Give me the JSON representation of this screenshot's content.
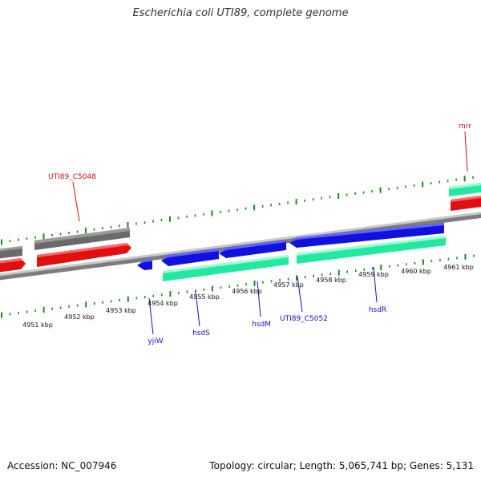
{
  "title": "Escherichia coli UTI89, complete genome",
  "footer": {
    "accession": "Accession: NC_007946",
    "summary": "Topology: circular; Length: 5,065,741 bp; Genes: 5,131"
  },
  "colors": {
    "backbone": "#8a8a8a",
    "tick": "#1a8a1a",
    "gene_blue": "#1111dd",
    "cds_green": "#22e8a0",
    "gene_red": "#ee1111",
    "gene_gray": "#666666",
    "label_blue": "#1111cc",
    "label_red": "#cc1111"
  },
  "scale": {
    "ticks": [
      {
        "label": "4951 kbp"
      },
      {
        "label": "4952 kbp"
      },
      {
        "label": "4953 kbp"
      },
      {
        "label": "4954 kbp"
      },
      {
        "label": "4955 kbp"
      },
      {
        "label": "4956 kbp"
      },
      {
        "label": "4957 kbp"
      },
      {
        "label": "4958 kbp"
      },
      {
        "label": "4959 kbp"
      },
      {
        "label": "4960 kbp"
      },
      {
        "label": "4961 kbp"
      }
    ]
  },
  "gene_labels": [
    {
      "text": "UTI89_C5048",
      "color": "red"
    },
    {
      "text": "mrr",
      "color": "red"
    },
    {
      "text": "yjiW",
      "color": "blue"
    },
    {
      "text": "hsdS",
      "color": "blue"
    },
    {
      "text": "hsdM",
      "color": "blue"
    },
    {
      "text": "UTI89_C5052",
      "color": "blue"
    },
    {
      "text": "hsdR",
      "color": "blue"
    }
  ]
}
